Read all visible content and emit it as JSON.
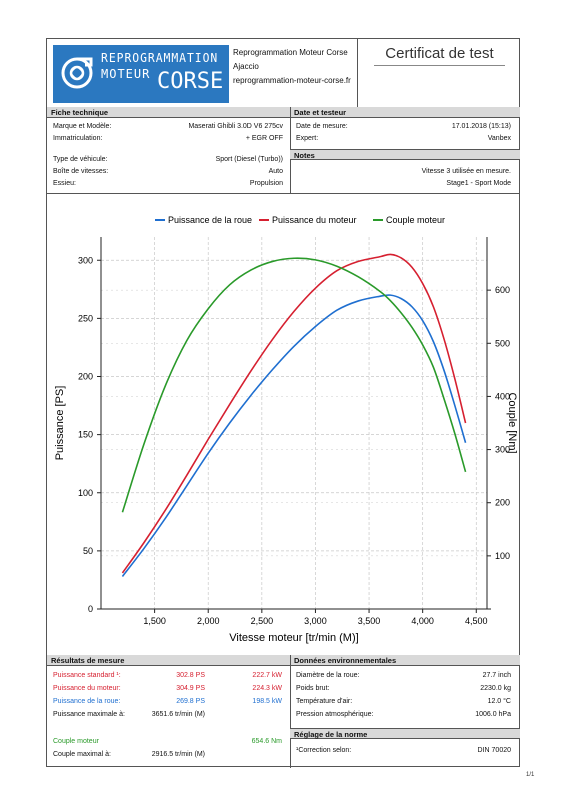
{
  "header": {
    "logo": {
      "line1": "REPROGRAMMATION",
      "line2": "MOTEUR",
      "line3": "CORSE",
      "icon": "turbo-icon"
    },
    "company_name": "Reprogrammation Moteur Corse",
    "company_city": "Ajaccio",
    "company_url": "reprogrammation-moteur-corse.fr",
    "certificate_title": "Certificat de test"
  },
  "fiche": {
    "title": "Fiche technique",
    "rows": [
      {
        "label": "Marque et Modèle:",
        "value": "Maserati Ghibli 3.0D V6 275cv"
      },
      {
        "label": "Immatriculation:",
        "value": "+ EGR OFF"
      },
      {
        "label": "Type de véhicule:",
        "value": "Sport (Diesel (Turbo))"
      },
      {
        "label": "Boîte de vitesses:",
        "value": "Auto"
      },
      {
        "label": "Essieu:",
        "value": "Propulsion"
      }
    ]
  },
  "date_testeur": {
    "title": "Date et testeur",
    "rows": [
      {
        "label": "Date de mesure:",
        "value": "17.01.2018 (15:13)"
      },
      {
        "label": "Expert:",
        "value": "Vanbex"
      }
    ]
  },
  "notes": {
    "title": "Notes",
    "lines": [
      "Vitesse 3 utilisée en mesure.",
      "Stage1 - Sport Mode"
    ]
  },
  "chart_data": {
    "type": "line",
    "xlabel": "Vitesse moteur [tr/min (M)]",
    "ylabel": "Puissance [PS]",
    "y2label": "Couple [Nm]",
    "xlim": [
      1000,
      4600
    ],
    "ylim": [
      0,
      320
    ],
    "y2lim": [
      0,
      700
    ],
    "x_ticks": [
      1500,
      2000,
      2500,
      3000,
      3500,
      4000,
      4500
    ],
    "x_tick_labels": [
      "1,500",
      "2,000",
      "2,500",
      "3,000",
      "3,500",
      "4,000",
      "4,500"
    ],
    "y_ticks": [
      0,
      50,
      100,
      150,
      200,
      250,
      300
    ],
    "y_tick_labels": [
      "0",
      "50",
      "100",
      "150",
      "200",
      "250",
      "300"
    ],
    "y2_ticks": [
      100,
      200,
      300,
      400,
      500,
      600
    ],
    "y2_tick_labels": [
      "100",
      "200",
      "300",
      "400",
      "500",
      "600"
    ],
    "grid": true,
    "legend": "top",
    "x": [
      1200,
      1400,
      1600,
      1800,
      2000,
      2200,
      2400,
      2600,
      2800,
      3000,
      3200,
      3400,
      3600,
      3700,
      3800,
      3900,
      4000,
      4100,
      4200,
      4300,
      4400
    ],
    "series": [
      {
        "name": "Puissance de la roue",
        "axis": "left",
        "color": "#1f6fd0",
        "values": [
          28,
          52,
          78,
          106,
          134,
          160,
          184,
          206,
          226,
          243,
          257,
          265,
          269,
          270,
          267,
          260,
          248,
          230,
          205,
          175,
          143
        ]
      },
      {
        "name": "Puissance du moteur",
        "axis": "left",
        "color": "#d62030",
        "values": [
          31,
          57,
          85,
          115,
          146,
          176,
          205,
          232,
          256,
          276,
          291,
          299,
          303,
          305,
          302,
          294,
          280,
          260,
          232,
          198,
          160
        ]
      },
      {
        "name": "Couple moteur",
        "axis": "right",
        "color": "#2a9a2a",
        "values": [
          182,
          310,
          420,
          505,
          565,
          610,
          638,
          654,
          660,
          657,
          645,
          625,
          598,
          580,
          557,
          530,
          497,
          455,
          395,
          330,
          258
        ]
      }
    ]
  },
  "resultats": {
    "title": "Résultats de mesure",
    "rows": [
      {
        "label": "Puissance standard ¹:",
        "v1": "302.8 PS",
        "v2": "222.7 kW",
        "color": "#d62030"
      },
      {
        "label": "Puissance du moteur:",
        "v1": "304.9 PS",
        "v2": "224.3 kW",
        "color": "#d62030"
      },
      {
        "label": "Puissance de la roue:",
        "v1": "269.8 PS",
        "v2": "198.5 kW",
        "color": "#1f6fd0"
      },
      {
        "label": "Puissance maximale à:",
        "v1": "3651.6 tr/min (M)",
        "v2": "",
        "color": "#111111"
      }
    ],
    "torque_rows": [
      {
        "label": "Couple moteur",
        "v1": "",
        "v2": "654.6 Nm",
        "color": "#2a9a2a"
      },
      {
        "label": "Couple maximal à:",
        "v1": "2916.5 tr/min (M)",
        "v2": "",
        "color": "#111111"
      }
    ]
  },
  "environnement": {
    "title": "Données environnementales",
    "rows": [
      {
        "label": "Diamètre de la roue:",
        "value": "27.7 inch"
      },
      {
        "label": "Poids brut:",
        "value": "2230.0 kg"
      },
      {
        "label": "Température d'air:",
        "value": "12.0 °C"
      },
      {
        "label": "Pression atmosphérique:",
        "value": "1006.0 hPa"
      }
    ]
  },
  "norme": {
    "title": "Réglage de la norme",
    "label": "¹Correction selon:",
    "value": "DIN 70020"
  },
  "page_number": "1/1"
}
